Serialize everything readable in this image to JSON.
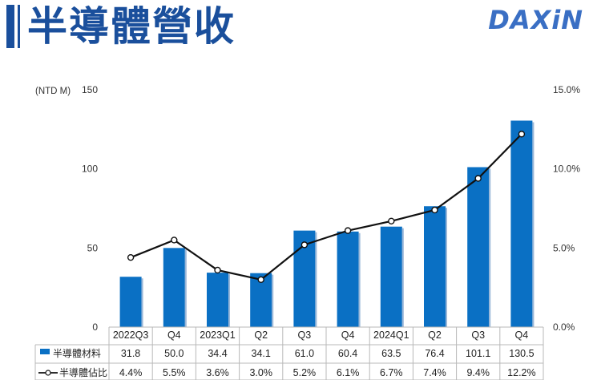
{
  "header": {
    "title": "半導體營收",
    "logo_text": "DAXiN"
  },
  "colors": {
    "bar": "#0a70c4",
    "line": "#111111",
    "title": "#1a4f9c",
    "logo": "#3a6fc4"
  },
  "chart_data": {
    "type": "bar",
    "categories": [
      "2022Q3",
      "Q4",
      "2023Q1",
      "Q2",
      "Q3",
      "Q4",
      "2024Q1",
      "Q2",
      "Q3",
      "Q4"
    ],
    "series": [
      {
        "name": "半導體材料",
        "type": "bar",
        "axis": "left",
        "values": [
          31.8,
          50.0,
          34.4,
          34.1,
          61.0,
          60.4,
          63.5,
          76.4,
          101.1,
          130.5
        ],
        "labels": [
          "31.8",
          "50.0",
          "34.4",
          "34.1",
          "61.0",
          "60.4",
          "63.5",
          "76.4",
          "101.1",
          "130.5"
        ]
      },
      {
        "name": "半導體佔比",
        "type": "line",
        "axis": "right",
        "values": [
          4.4,
          5.5,
          3.6,
          3.0,
          5.2,
          6.1,
          6.7,
          7.4,
          9.4,
          12.2
        ],
        "labels": [
          "4.4%",
          "5.5%",
          "3.6%",
          "3.0%",
          "5.2%",
          "6.1%",
          "6.7%",
          "7.4%",
          "9.4%",
          "12.2%"
        ]
      }
    ],
    "ylabel": "(NTD M)",
    "ylim": [
      0,
      150
    ],
    "yticks": [
      "0",
      "50",
      "100",
      "150"
    ],
    "y2lim": [
      0,
      15
    ],
    "y2ticks": [
      "0.0%",
      "5.0%",
      "10.0%",
      "15.0%"
    ],
    "grid": false,
    "legend": "data-table-bottom"
  }
}
